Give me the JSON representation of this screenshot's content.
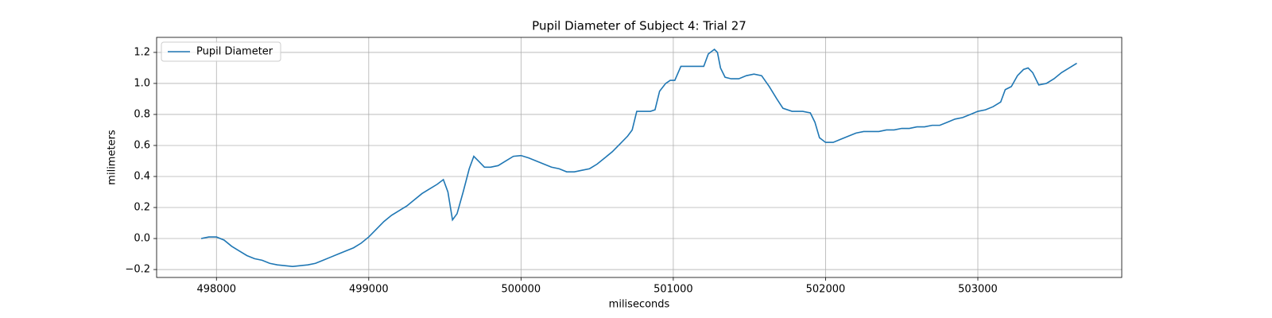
{
  "chart_data": {
    "type": "line",
    "title": "Pupil Diameter of Subject 4: Trial 27",
    "x_label": "miliseconds",
    "y_label": "milimeters",
    "x": [
      497900,
      497950,
      498000,
      498050,
      498100,
      498150,
      498200,
      498250,
      498300,
      498350,
      498400,
      498450,
      498500,
      498550,
      498600,
      498650,
      498700,
      498750,
      498800,
      498850,
      498900,
      498950,
      499000,
      499050,
      499100,
      499150,
      499200,
      499250,
      499300,
      499350,
      499400,
      499450,
      499490,
      499520,
      499550,
      499580,
      499620,
      499660,
      499690,
      499720,
      499760,
      499800,
      499850,
      499900,
      499950,
      500000,
      500050,
      500100,
      500150,
      500200,
      500250,
      500300,
      500350,
      500400,
      500450,
      500500,
      500550,
      500600,
      500650,
      500700,
      500730,
      500760,
      500800,
      500850,
      500880,
      500910,
      500950,
      500980,
      501010,
      501050,
      501100,
      501150,
      501200,
      501230,
      501270,
      501290,
      501310,
      501340,
      501380,
      501430,
      501480,
      501530,
      501580,
      501630,
      501680,
      501720,
      501780,
      501850,
      501900,
      501930,
      501960,
      502000,
      502050,
      502100,
      502150,
      502200,
      502250,
      502300,
      502350,
      502400,
      502450,
      502500,
      502550,
      502600,
      502650,
      502700,
      502750,
      502800,
      502850,
      502900,
      502950,
      503000,
      503050,
      503100,
      503150,
      503180,
      503220,
      503260,
      503300,
      503330,
      503360,
      503400,
      503450,
      503500,
      503550,
      503600,
      503650
    ],
    "series": [
      {
        "name": "Pupil Diameter",
        "color": "#1f77b4",
        "values": [
          0.0,
          0.01,
          0.01,
          -0.01,
          -0.05,
          -0.08,
          -0.11,
          -0.13,
          -0.14,
          -0.16,
          -0.17,
          -0.175,
          -0.18,
          -0.175,
          -0.17,
          -0.16,
          -0.14,
          -0.12,
          -0.1,
          -0.08,
          -0.06,
          -0.03,
          0.01,
          0.06,
          0.11,
          0.15,
          0.18,
          0.21,
          0.25,
          0.29,
          0.32,
          0.35,
          0.38,
          0.3,
          0.12,
          0.16,
          0.3,
          0.45,
          0.53,
          0.5,
          0.46,
          0.46,
          0.47,
          0.5,
          0.53,
          0.535,
          0.52,
          0.5,
          0.48,
          0.46,
          0.45,
          0.43,
          0.43,
          0.44,
          0.45,
          0.48,
          0.52,
          0.56,
          0.61,
          0.66,
          0.7,
          0.82,
          0.82,
          0.82,
          0.83,
          0.95,
          1.0,
          1.02,
          1.02,
          1.11,
          1.11,
          1.11,
          1.11,
          1.19,
          1.22,
          1.2,
          1.1,
          1.04,
          1.03,
          1.03,
          1.05,
          1.06,
          1.05,
          0.98,
          0.9,
          0.84,
          0.82,
          0.82,
          0.81,
          0.75,
          0.65,
          0.62,
          0.62,
          0.64,
          0.66,
          0.68,
          0.69,
          0.69,
          0.69,
          0.7,
          0.7,
          0.71,
          0.71,
          0.72,
          0.72,
          0.73,
          0.73,
          0.75,
          0.77,
          0.78,
          0.8,
          0.82,
          0.83,
          0.85,
          0.88,
          0.96,
          0.98,
          1.05,
          1.09,
          1.1,
          1.07,
          0.99,
          1.0,
          1.03,
          1.07,
          1.1,
          1.13
        ]
      }
    ],
    "xlim": [
      497607,
      503945
    ],
    "ylim": [
      -0.251,
      1.297
    ],
    "xticks": [
      498000,
      499000,
      500000,
      501000,
      502000,
      503000
    ],
    "yticks": [
      {
        "value": -0.2,
        "label": "−0.2"
      },
      {
        "value": 0,
        "label": "0.0"
      },
      {
        "value": 0.2,
        "label": "0.2"
      },
      {
        "value": 0.4,
        "label": "0.4"
      },
      {
        "value": 0.6,
        "label": "0.6"
      },
      {
        "value": 0.8,
        "label": "0.8"
      },
      {
        "value": 1,
        "label": "1.0"
      },
      {
        "value": 1.2,
        "label": "1.2"
      }
    ],
    "grid": true,
    "legend": "upper-left"
  }
}
